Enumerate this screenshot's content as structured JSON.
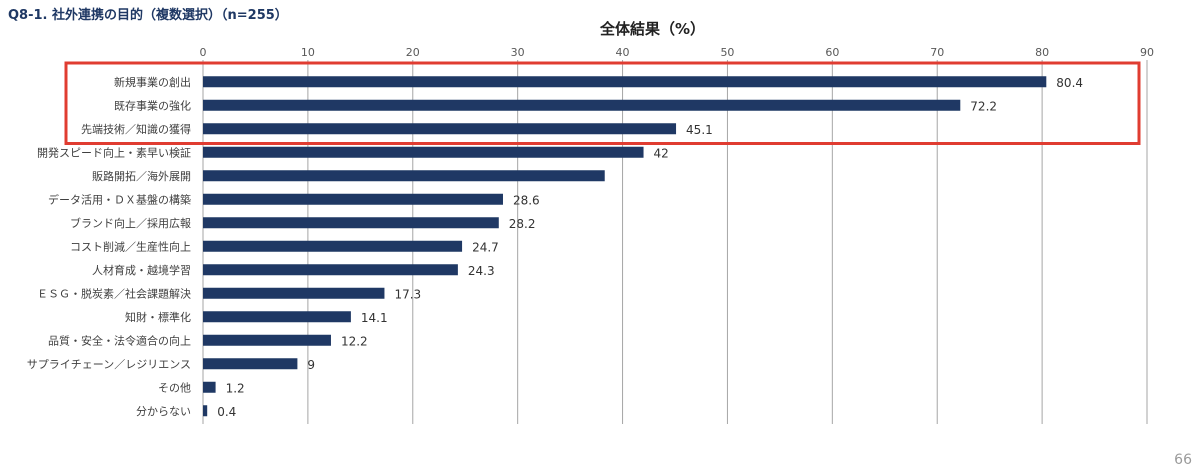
{
  "header": {
    "title": "Q8-1. 社外連携の目的（複数選択）（n=255）"
  },
  "footer": {
    "page_number": "66"
  },
  "colors": {
    "bar": "#1f3864",
    "grid": "#a6a6a6",
    "highlight_box": "#e03c31",
    "title": "#1f3864"
  },
  "chart_data": {
    "type": "bar",
    "orientation": "horizontal",
    "title": "全体結果（%）",
    "xlim": [
      0,
      90
    ],
    "ticks": [
      0,
      10,
      20,
      30,
      40,
      50,
      60,
      70,
      80,
      90
    ],
    "grid": true,
    "categories": [
      "新規事業の創出",
      "既存事業の強化",
      "先端技術／知識の獲得",
      "開発スピード向上・素早い検証",
      "販路開拓／海外展開",
      "データ活用・ＤＸ基盤の構築",
      "ブランド向上／採用広報",
      "コスト削減／生産性向上",
      "人材育成・越境学習",
      "ＥＳＧ・脱炭素／社会課題解決",
      "知財・標準化",
      "品質・安全・法令適合の向上",
      "サプライチェーン／レジリエンス",
      "その他",
      "分からない"
    ],
    "values": [
      80.4,
      72.2,
      45.1,
      42,
      38.3,
      28.6,
      28.2,
      24.7,
      24.3,
      17.3,
      14.1,
      12.2,
      9,
      1.2,
      0.4
    ],
    "value_labels": [
      "80.4",
      "72.2",
      "45.1",
      "42",
      "",
      "28.6",
      "28.2",
      "24.7",
      "24.3",
      "17.3",
      "14.1",
      "12.2",
      "9",
      "1.2",
      "0.4"
    ],
    "highlighted_categories": [
      "新規事業の創出",
      "既存事業の強化",
      "先端技術／知識の獲得"
    ]
  }
}
